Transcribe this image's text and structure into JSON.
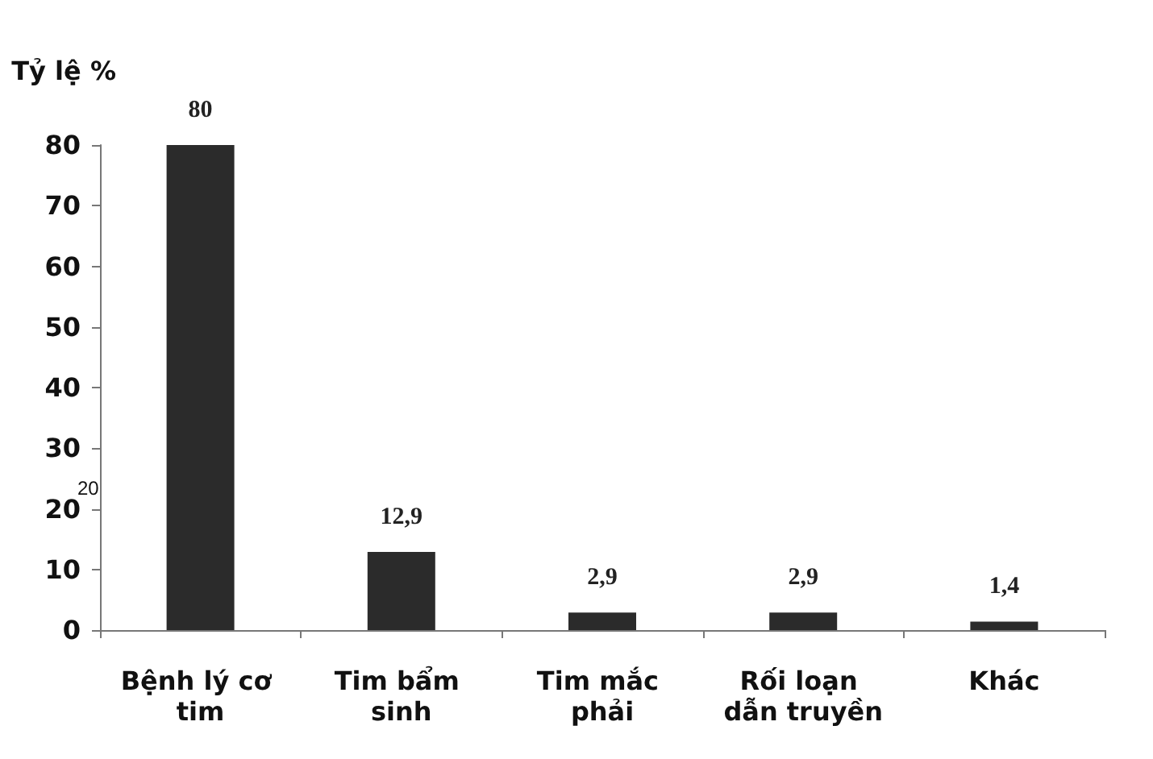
{
  "chart_data": {
    "type": "bar",
    "ylabel": "Tỷ lệ %",
    "categories": [
      "Bệnh lý cơ tim",
      "Tim bẩm sinh",
      "Tim mắc phải",
      "Rối loạn dẫn truyền",
      "Khác"
    ],
    "values": [
      80,
      12.9,
      2.9,
      2.9,
      1.4
    ],
    "value_labels": [
      "80",
      "12,9",
      "2,9",
      "2,9",
      "1,4"
    ],
    "color": "#2b2b2b",
    "ylim": [
      0,
      80
    ],
    "yticks": [
      0,
      10,
      20,
      30,
      40,
      50,
      60,
      70,
      80
    ],
    "annotations": [
      "20"
    ],
    "grid": false
  }
}
